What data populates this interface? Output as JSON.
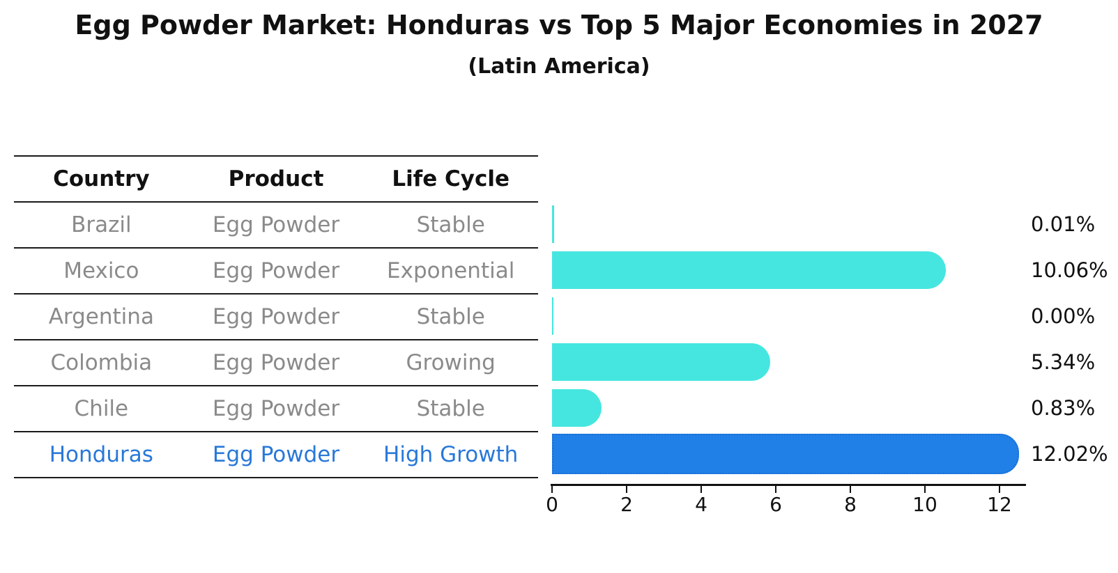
{
  "title": "Egg Powder Market: Honduras vs Top 5 Major Economies in 2027",
  "subtitle": "(Latin America)",
  "table": {
    "headers": [
      "Country",
      "Product",
      "Life Cycle"
    ],
    "rows": [
      {
        "country": "Brazil",
        "product": "Egg Powder",
        "life_cycle": "Stable",
        "highlight": false
      },
      {
        "country": "Mexico",
        "product": "Egg Powder",
        "life_cycle": "Exponential",
        "highlight": false
      },
      {
        "country": "Argentina",
        "product": "Egg Powder",
        "life_cycle": "Stable",
        "highlight": false
      },
      {
        "country": "Colombia",
        "product": "Egg Powder",
        "life_cycle": "Growing",
        "highlight": false
      },
      {
        "country": "Chile",
        "product": "Egg Powder",
        "life_cycle": "Stable",
        "highlight": false
      },
      {
        "country": "Honduras",
        "product": "Egg Powder",
        "life_cycle": "High Growth",
        "highlight": true
      }
    ]
  },
  "chart_data": {
    "type": "bar",
    "orientation": "horizontal",
    "title": "Egg Powder Market: Honduras vs Top 5 Major Economies in 2027",
    "subtitle": "(Latin America)",
    "categories": [
      "Brazil",
      "Mexico",
      "Argentina",
      "Colombia",
      "Chile",
      "Honduras"
    ],
    "values": [
      0.01,
      10.06,
      0.0,
      5.34,
      0.83,
      12.02
    ],
    "value_labels": [
      "0.01%",
      "10.06%",
      "0.00%",
      "5.34%",
      "0.83%",
      "12.02%"
    ],
    "x_ticks": [
      0,
      2,
      4,
      6,
      8,
      10,
      12
    ],
    "xlim": [
      0,
      12.7
    ],
    "xlabel": "",
    "ylabel": "",
    "grid": false,
    "legend": false,
    "bar_color": "#46e6e0",
    "highlight_color": "#2080e8",
    "highlight_border_color": "#1a6ed2",
    "highlight_index": 5
  },
  "colors": {
    "text_primary": "#111111",
    "text_muted": "#8a8a8a",
    "text_highlight": "#2878d9",
    "table_line": "#1a1a1a"
  }
}
